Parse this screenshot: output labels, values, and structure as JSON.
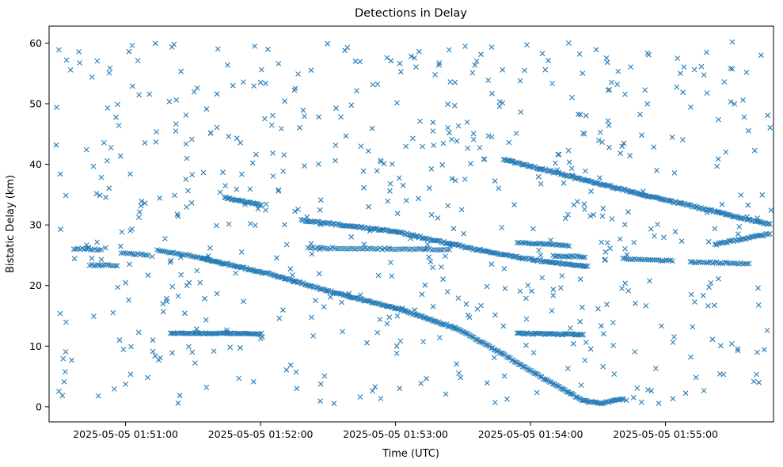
{
  "chart_data": {
    "type": "scatter",
    "title": "Detections in Delay",
    "xlabel": "Time (UTC)",
    "ylabel": "Bistatic Delay (km)",
    "marker": "x",
    "color": "#1f77b4",
    "grid": false,
    "legend": "none",
    "t_min": 26,
    "t_max": 348,
    "ylim": [
      -2.5,
      62.8
    ],
    "y_ticks": [
      0,
      10,
      20,
      30,
      40,
      50,
      60
    ],
    "x_ticks": [
      {
        "t": 60,
        "label": "2025-05-05 01:51:00"
      },
      {
        "t": 120,
        "label": "2025-05-05 01:52:00"
      },
      {
        "t": 180,
        "label": "2025-05-05 01:53:00"
      },
      {
        "t": 240,
        "label": "2025-05-05 01:54:00"
      },
      {
        "t": 300,
        "label": "2025-05-05 01:55:00"
      }
    ],
    "time_axis_note": "t values are seconds after 2025-05-05 01:50:00 UTC",
    "tracks": [
      {
        "name": "segment-33-34km",
        "pts": [
          [
            104,
            34.5
          ],
          [
            121,
            33.2
          ]
        ],
        "step": 0.6,
        "jitter": 0.12
      },
      {
        "name": "long-mid-descender",
        "pts": [
          [
            138,
            30.8
          ],
          [
            180,
            28.9
          ],
          [
            219,
            25.7
          ],
          [
            245,
            24.0
          ],
          [
            266,
            23.1
          ]
        ],
        "step": 0.65,
        "jitter": 0.14
      },
      {
        "name": "flat-26km-mid",
        "pts": [
          [
            141,
            26.2
          ],
          [
            205,
            25.9
          ]
        ],
        "step": 1.1,
        "jitter": 0.12
      },
      {
        "name": "right-long-descender",
        "pts": [
          [
            228,
            40.8
          ],
          [
            290,
            35.0
          ],
          [
            347,
            30.0
          ]
        ],
        "step": 0.6,
        "jitter": 0.13
      },
      {
        "name": "deep-pass-to-zero",
        "pts": [
          [
            94,
            24.5
          ],
          [
            124,
            21.9
          ],
          [
            152,
            18.9
          ],
          [
            180,
            16.3
          ],
          [
            208,
            12.8
          ],
          [
            228,
            8.6
          ],
          [
            248,
            4.2
          ],
          [
            263,
            1.1
          ],
          [
            271,
            0.5
          ],
          [
            282,
            1.4
          ]
        ],
        "step": 0.6,
        "jitter": 0.12
      },
      {
        "name": "flat-12km-a",
        "pts": [
          [
            80,
            12.15
          ],
          [
            121,
            12.05
          ]
        ],
        "step": 0.6,
        "jitter": 0.1
      },
      {
        "name": "flat-12km-b",
        "pts": [
          [
            234,
            12.1
          ],
          [
            264,
            11.9
          ]
        ],
        "step": 0.6,
        "jitter": 0.1
      },
      {
        "name": "flat-26km-left",
        "pts": [
          [
            37,
            26.1
          ],
          [
            50,
            25.9
          ]
        ],
        "step": 0.9,
        "jitter": 0.12
      },
      {
        "name": "flat-23km-left",
        "pts": [
          [
            44,
            23.4
          ],
          [
            57,
            23.3
          ]
        ],
        "step": 0.9,
        "jitter": 0.12
      },
      {
        "name": "flat-25km-left",
        "pts": [
          [
            58,
            25.3
          ],
          [
            71,
            25.1
          ]
        ],
        "step": 0.9,
        "jitter": 0.12
      },
      {
        "name": "descender-25km-left",
        "pts": [
          [
            74,
            25.8
          ],
          [
            97,
            24.4
          ]
        ],
        "step": 0.8,
        "jitter": 0.12
      },
      {
        "name": "flat-27km-right",
        "pts": [
          [
            234,
            27.1
          ],
          [
            258,
            26.6
          ]
        ],
        "step": 0.8,
        "jitter": 0.12
      },
      {
        "name": "flat-25km-right",
        "pts": [
          [
            250,
            24.9
          ],
          [
            265,
            24.7
          ]
        ],
        "step": 0.8,
        "jitter": 0.12
      },
      {
        "name": "flat-24km-right-a",
        "pts": [
          [
            281,
            24.4
          ],
          [
            304,
            24.1
          ]
        ],
        "step": 0.9,
        "jitter": 0.12
      },
      {
        "name": "flat-24km-right-b",
        "pts": [
          [
            311,
            23.9
          ],
          [
            338,
            23.6
          ]
        ],
        "step": 0.9,
        "jitter": 0.12
      },
      {
        "name": "riser-right-edge",
        "pts": [
          [
            322,
            26.8
          ],
          [
            347,
            28.6
          ]
        ],
        "step": 0.7,
        "jitter": 0.13
      }
    ],
    "noise": {
      "count": 630,
      "seed": 7,
      "t_range": [
        29,
        347
      ],
      "d_range": [
        0.4,
        60.3
      ]
    }
  }
}
